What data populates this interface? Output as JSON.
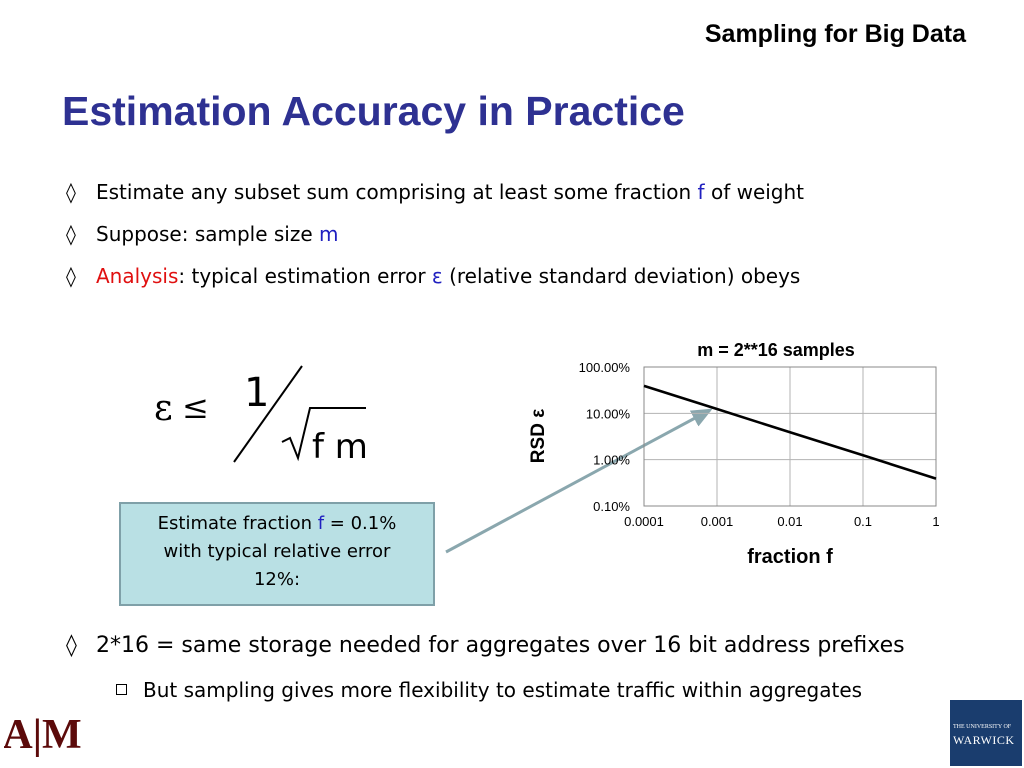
{
  "header": {
    "title": "Sampling for Big Data"
  },
  "slide": {
    "title": "Estimation Accuracy in Practice"
  },
  "bullets": [
    {
      "marker": "◊",
      "pre": "Estimate any subset sum comprising at least some fraction ",
      "hl": "f",
      "post": " of weight"
    },
    {
      "marker": "◊",
      "pre": "Suppose: sample size ",
      "hl": "m",
      "post": ""
    },
    {
      "marker": "◊",
      "lead": "Analysis",
      "pre": ": typical estimation error ",
      "hl": "ε",
      "post": " (relative standard deviation) obeys"
    },
    {
      "marker": "◊",
      "text": "2*16 = same storage needed for aggregates over 16 bit address prefixes"
    }
  ],
  "sub_bullet": {
    "text": "But sampling gives more flexibility to estimate traffic within aggregates"
  },
  "formula": {
    "lhs": "ε",
    "relation": "≤",
    "numerator": "1",
    "radicand": "f m"
  },
  "callout": {
    "line1_pre": "Estimate  fraction ",
    "line1_hl": "f",
    "line1_post": " = 0.1%",
    "line2": "with typical relative error",
    "line3": "12%:"
  },
  "chart_data": {
    "type": "line",
    "title": "m = 2**16 samples",
    "xlabel": "fraction f",
    "ylabel": "RSD ε",
    "xscale": "log",
    "yscale": "log",
    "xlim": [
      0.0001,
      1
    ],
    "ylim": [
      0.001,
      1
    ],
    "x_ticks": [
      "0.0001",
      "0.001",
      "0.01",
      "0.1",
      "1"
    ],
    "y_ticks": [
      "0.10%",
      "1.00%",
      "10.00%",
      "100.00%"
    ],
    "grid": true,
    "series": [
      {
        "x": [
          0.0001,
          0.001,
          0.01,
          0.1,
          1
        ],
        "y": [
          0.39,
          0.124,
          0.039,
          0.0124,
          0.0039
        ]
      }
    ]
  },
  "logos": {
    "left": "A|M",
    "right_line1": "THE UNIVERSITY OF",
    "right_line2": "WARWICK"
  }
}
